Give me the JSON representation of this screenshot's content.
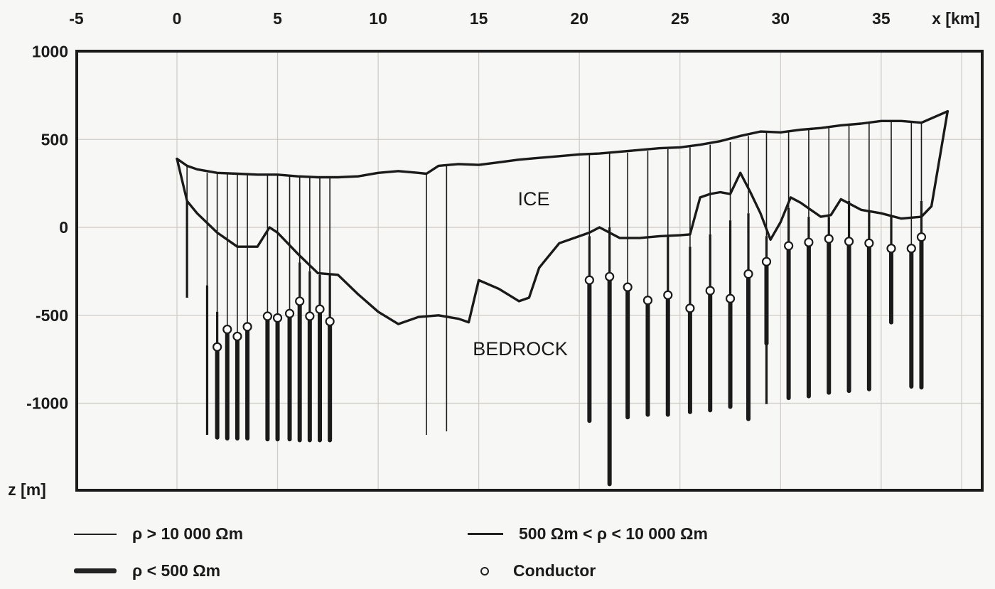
{
  "chart_data": {
    "type": "line",
    "title": "",
    "xlabel": "x [km]",
    "ylabel": "z [m]",
    "xlim": [
      -5,
      40
    ],
    "ylim": [
      -1500,
      1000
    ],
    "x_ticks": [
      -5,
      0,
      5,
      10,
      15,
      20,
      25,
      30,
      35
    ],
    "y_ticks": [
      1000,
      500,
      0,
      -500,
      -1000
    ],
    "grid": true,
    "annotations": [
      {
        "text": "ICE",
        "x": 17.5,
        "z": 160
      },
      {
        "text": "BEDROCK",
        "x": 17,
        "z": -700
      }
    ],
    "legend": [
      {
        "label": "ρ > 10 000 Ωm",
        "style": "thin"
      },
      {
        "label": "500 Ωm < ρ < 10 000 Ωm",
        "style": "medium"
      },
      {
        "label": "ρ < 500 Ωm",
        "style": "thick"
      },
      {
        "label": "Conductor",
        "style": "circle"
      }
    ],
    "series": [
      {
        "name": "Ice surface",
        "x": [
          0,
          0.5,
          1,
          2,
          3,
          4,
          5,
          6,
          7,
          8,
          9,
          10,
          11,
          12,
          12.4,
          13,
          14,
          15,
          16,
          17,
          18,
          19,
          20,
          21,
          22,
          23,
          24,
          25,
          26,
          27,
          28,
          29,
          30,
          31,
          32,
          33,
          34,
          35,
          36,
          37,
          38.3
        ],
        "z": [
          390,
          350,
          330,
          310,
          305,
          300,
          300,
          290,
          285,
          285,
          290,
          310,
          320,
          310,
          305,
          350,
          360,
          355,
          370,
          385,
          395,
          405,
          415,
          420,
          430,
          440,
          450,
          455,
          470,
          490,
          520,
          545,
          540,
          555,
          565,
          580,
          590,
          605,
          605,
          595,
          660
        ]
      },
      {
        "name": "Bedrock surface",
        "x": [
          0,
          0.5,
          1,
          2,
          3,
          4,
          4.6,
          5,
          6,
          7,
          8,
          9,
          10,
          11,
          12,
          13,
          14,
          14.5,
          15,
          16,
          17,
          17.5,
          18,
          19,
          20,
          20.5,
          21,
          22,
          23,
          24,
          25,
          25.5,
          26,
          26.5,
          27,
          27.5,
          28,
          28.5,
          29,
          29.5,
          30,
          30.5,
          31,
          32,
          32.5,
          33,
          34,
          35,
          36,
          37,
          37.5,
          38.3
        ],
        "z": [
          390,
          150,
          80,
          -30,
          -110,
          -110,
          0,
          -30,
          -150,
          -260,
          -270,
          -380,
          -480,
          -550,
          -510,
          -500,
          -520,
          -540,
          -300,
          -350,
          -420,
          -400,
          -230,
          -90,
          -50,
          -30,
          0,
          -60,
          -60,
          -50,
          -45,
          -40,
          170,
          190,
          200,
          190,
          310,
          200,
          80,
          -70,
          30,
          170,
          140,
          60,
          70,
          160,
          100,
          80,
          50,
          60,
          120,
          660
        ]
      }
    ],
    "soundings": [
      {
        "x": 0.5,
        "thin_top": 350,
        "medium_top": 150,
        "medium_bottom": -400,
        "thick_top": null,
        "bottom": -400,
        "conductor": null
      },
      {
        "x": 1.5,
        "thin_top": 310,
        "medium_top": -330,
        "thick_top": null,
        "bottom": -1180,
        "conductor": null
      },
      {
        "x": 2.0,
        "thin_top": 310,
        "medium_top": -480,
        "thick_top": -680,
        "bottom": -1195,
        "conductor": -680
      },
      {
        "x": 2.5,
        "thin_top": 308,
        "medium_top": null,
        "thick_top": -580,
        "bottom": -1200,
        "conductor": -580
      },
      {
        "x": 3.0,
        "thin_top": 305,
        "medium_top": null,
        "thick_top": -620,
        "bottom": -1200,
        "conductor": -620
      },
      {
        "x": 3.5,
        "thin_top": 305,
        "medium_top": null,
        "thick_top": -565,
        "bottom": -1200,
        "conductor": -565
      },
      {
        "x": 4.5,
        "thin_top": 300,
        "medium_top": null,
        "thick_top": -505,
        "bottom": -1205,
        "conductor": -505
      },
      {
        "x": 5.0,
        "thin_top": 300,
        "medium_top": null,
        "thick_top": -515,
        "bottom": -1205,
        "conductor": -515
      },
      {
        "x": 5.6,
        "thin_top": 298,
        "medium_top": null,
        "thick_top": -490,
        "bottom": -1205,
        "conductor": -490
      },
      {
        "x": 6.1,
        "thin_top": 290,
        "medium_top": -200,
        "thick_top": -420,
        "bottom": -1210,
        "conductor": -420
      },
      {
        "x": 6.6,
        "thin_top": 288,
        "medium_top": -250,
        "thick_top": -505,
        "bottom": -1210,
        "conductor": -505
      },
      {
        "x": 7.1,
        "thin_top": 285,
        "medium_top": -270,
        "thick_top": -465,
        "bottom": -1210,
        "conductor": -465
      },
      {
        "x": 7.6,
        "thin_top": 285,
        "medium_top": -270,
        "thick_top": -535,
        "bottom": -1210,
        "conductor": -535
      },
      {
        "x": 12.4,
        "thin_top": 305,
        "medium_top": null,
        "thick_top": null,
        "bottom": -1180,
        "conductor": null
      },
      {
        "x": 13.4,
        "thin_top": 350,
        "medium_top": null,
        "thick_top": null,
        "bottom": -1160,
        "conductor": null
      },
      {
        "x": 20.5,
        "thin_top": 415,
        "medium_top": -50,
        "thick_top": -300,
        "bottom": -1100,
        "conductor": -300
      },
      {
        "x": 21.5,
        "thin_top": 420,
        "medium_top": 0,
        "thick_top": -280,
        "bottom": -1460,
        "conductor": -280
      },
      {
        "x": 22.4,
        "thin_top": 425,
        "medium_top": null,
        "thick_top": -340,
        "bottom": -1080,
        "conductor": -340
      },
      {
        "x": 23.4,
        "thin_top": 435,
        "medium_top": null,
        "thick_top": -415,
        "bottom": -1065,
        "conductor": -415
      },
      {
        "x": 24.4,
        "thin_top": 445,
        "medium_top": -50,
        "thick_top": -385,
        "bottom": -1065,
        "conductor": -385
      },
      {
        "x": 25.5,
        "thin_top": 455,
        "medium_top": -110,
        "thick_top": -460,
        "bottom": -1050,
        "conductor": -460
      },
      {
        "x": 26.5,
        "thin_top": 470,
        "medium_top": -40,
        "thick_top": -360,
        "bottom": -1040,
        "conductor": -360
      },
      {
        "x": 27.5,
        "thin_top": 485,
        "medium_top": 40,
        "thick_top": -405,
        "bottom": -1020,
        "conductor": -405
      },
      {
        "x": 28.4,
        "thin_top": 520,
        "medium_top": 80,
        "thick_top": -265,
        "bottom": -1090,
        "conductor": -265
      },
      {
        "x": 29.3,
        "thin_top": 545,
        "medium_top": -50,
        "thick_top": -195,
        "medium_bottom": -660,
        "bottom": -1005,
        "conductor": -195
      },
      {
        "x": 30.4,
        "thin_top": 540,
        "medium_top": 110,
        "thick_top": -105,
        "bottom": -970,
        "conductor": -105
      },
      {
        "x": 31.4,
        "thin_top": 555,
        "medium_top": 60,
        "thick_top": -85,
        "bottom": -960,
        "conductor": -85
      },
      {
        "x": 32.4,
        "thin_top": 565,
        "medium_top": 60,
        "thick_top": -65,
        "bottom": -940,
        "conductor": -65
      },
      {
        "x": 33.4,
        "thin_top": 580,
        "medium_top": 150,
        "thick_top": -80,
        "bottom": -930,
        "conductor": -80
      },
      {
        "x": 34.4,
        "thin_top": 590,
        "medium_top": 90,
        "thick_top": -90,
        "bottom": -920,
        "conductor": -90
      },
      {
        "x": 35.5,
        "thin_top": 605,
        "medium_top": 70,
        "thick_top": -120,
        "bottom": -540,
        "conductor": -120
      },
      {
        "x": 36.5,
        "thin_top": 600,
        "medium_top": null,
        "thick_top": -120,
        "bottom": -905,
        "conductor": -120
      },
      {
        "x": 37.0,
        "thin_top": 598,
        "medium_top": 150,
        "thick_top": -55,
        "bottom": -910,
        "conductor": -55
      }
    ]
  },
  "labels": {
    "x_axis_label": "x [km]",
    "y_axis_label": "z [m]",
    "ice": "ICE",
    "bedrock": "BEDROCK",
    "legend_thin": "ρ > 10 000 Ωm",
    "legend_medium": "500 Ωm < ρ < 10 000 Ωm",
    "legend_thick": "ρ < 500 Ωm",
    "legend_conductor": "Conductor"
  },
  "colors": {
    "ink": "#1a1a1a",
    "grid": "#cfcac4",
    "background": "#f7f7f5"
  }
}
